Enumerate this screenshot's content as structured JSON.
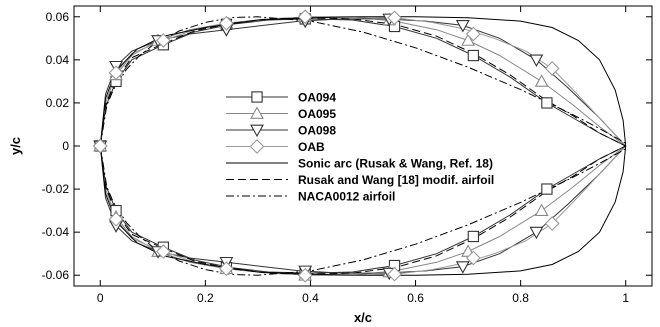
{
  "chart_data": {
    "type": "line",
    "xlabel": "x/c",
    "ylabel": "y/c",
    "xlim": [
      -0.05,
      1.05
    ],
    "ylim": [
      -0.065,
      0.065
    ],
    "xticks": [
      {
        "v": 0,
        "label": "0"
      },
      {
        "v": 0.2,
        "label": "0.2"
      },
      {
        "v": 0.4,
        "label": "0.4"
      },
      {
        "v": 0.6,
        "label": "0.6"
      },
      {
        "v": 0.8,
        "label": "0.8"
      },
      {
        "v": 1,
        "label": "1"
      }
    ],
    "yticks": [
      {
        "v": -0.06,
        "label": "-0.06"
      },
      {
        "v": -0.04,
        "label": "-0.04"
      },
      {
        "v": -0.02,
        "label": "-0.02"
      },
      {
        "v": 0,
        "label": "0"
      },
      {
        "v": 0.02,
        "label": "0.02"
      },
      {
        "v": 0.04,
        "label": "0.04"
      },
      {
        "v": 0.06,
        "label": "0.06"
      }
    ],
    "grid": false,
    "legend_position": "center",
    "series": [
      {
        "name": "OA094",
        "marker": "square",
        "line_style": "solid",
        "color": "#333333",
        "x": [
          0,
          0.01,
          0.03,
          0.06,
          0.12,
          0.18,
          0.25,
          0.32,
          0.4,
          0.48,
          0.56,
          0.64,
          0.71,
          0.78,
          0.85,
          0.9,
          0.95,
          1
        ],
        "y": [
          0,
          0.018,
          0.03,
          0.04,
          0.047,
          0.053,
          0.0565,
          0.0585,
          0.059,
          0.0585,
          0.0555,
          0.05,
          0.042,
          0.032,
          0.02,
          0.013,
          0.006,
          0
        ],
        "markers_x": [
          0,
          0.03,
          0.12,
          0.24,
          0.39,
          0.56,
          0.71,
          0.85
        ],
        "markers_y": [
          0,
          0.03,
          0.047,
          0.0565,
          0.059,
          0.0555,
          0.042,
          0.02
        ]
      },
      {
        "name": "OA095",
        "marker": "triangle-up",
        "line_style": "solid",
        "color": "#888888",
        "x": [
          0,
          0.01,
          0.03,
          0.06,
          0.11,
          0.17,
          0.24,
          0.32,
          0.4,
          0.48,
          0.56,
          0.64,
          0.7,
          0.76,
          0.84,
          0.9,
          0.95,
          1
        ],
        "y": [
          0,
          0.02,
          0.033,
          0.042,
          0.049,
          0.054,
          0.057,
          0.059,
          0.06,
          0.06,
          0.058,
          0.054,
          0.049,
          0.042,
          0.03,
          0.019,
          0.009,
          0
        ],
        "markers_x": [
          0,
          0.03,
          0.11,
          0.24,
          0.39,
          0.55,
          0.7,
          0.84
        ],
        "markers_y": [
          0,
          0.033,
          0.049,
          0.057,
          0.06,
          0.0585,
          0.049,
          0.03
        ]
      },
      {
        "name": "OA098",
        "marker": "triangle-down",
        "line_style": "solid",
        "color": "#333333",
        "x": [
          0,
          0.01,
          0.03,
          0.06,
          0.11,
          0.17,
          0.24,
          0.31,
          0.38,
          0.46,
          0.54,
          0.62,
          0.69,
          0.76,
          0.83,
          0.89,
          0.95,
          1
        ],
        "y": [
          0,
          0.024,
          0.037,
          0.044,
          0.049,
          0.052,
          0.054,
          0.056,
          0.058,
          0.059,
          0.059,
          0.058,
          0.056,
          0.05,
          0.04,
          0.027,
          0.013,
          0
        ],
        "markers_x": [
          0,
          0.03,
          0.11,
          0.24,
          0.39,
          0.55,
          0.69,
          0.83
        ],
        "markers_y": [
          0,
          0.037,
          0.049,
          0.054,
          0.058,
          0.059,
          0.056,
          0.04
        ]
      },
      {
        "name": "OAB",
        "marker": "diamond",
        "line_style": "solid",
        "color": "#999999",
        "x": [
          0,
          0.01,
          0.03,
          0.06,
          0.12,
          0.18,
          0.24,
          0.32,
          0.4,
          0.48,
          0.56,
          0.63,
          0.69,
          0.75,
          0.81,
          0.86,
          0.9,
          0.95,
          1
        ],
        "y": [
          0,
          0.02,
          0.034,
          0.043,
          0.049,
          0.054,
          0.057,
          0.0588,
          0.06,
          0.06,
          0.0595,
          0.0575,
          0.0545,
          0.05,
          0.044,
          0.036,
          0.026,
          0.013,
          0
        ],
        "markers_x": [
          0,
          0.03,
          0.12,
          0.24,
          0.39,
          0.56,
          0.71,
          0.86
        ],
        "markers_y": [
          0,
          0.034,
          0.049,
          0.057,
          0.06,
          0.0595,
          0.052,
          0.036
        ]
      },
      {
        "name": "Sonic arc (Rusak & Wang, Ref. 18)",
        "marker": "none",
        "line_style": "solid",
        "color": "#000000",
        "x": [
          0,
          0.01,
          0.03,
          0.07,
          0.12,
          0.2,
          0.3,
          0.4,
          0.5,
          0.6,
          0.7,
          0.8,
          0.86,
          0.91,
          0.95,
          0.98,
          0.995,
          1
        ],
        "y": [
          0,
          0.022,
          0.035,
          0.045,
          0.051,
          0.055,
          0.0585,
          0.0595,
          0.06,
          0.06,
          0.0595,
          0.058,
          0.055,
          0.049,
          0.04,
          0.026,
          0.012,
          0
        ]
      },
      {
        "name": "Rusak and Wang [18] modif. airfoil",
        "marker": "none",
        "line_style": "dashed",
        "color": "#000000",
        "x": [
          0,
          0.01,
          0.03,
          0.06,
          0.12,
          0.18,
          0.25,
          0.32,
          0.4,
          0.48,
          0.56,
          0.64,
          0.71,
          0.78,
          0.85,
          0.9,
          0.95,
          1
        ],
        "y": [
          0,
          0.019,
          0.031,
          0.041,
          0.0475,
          0.0535,
          0.057,
          0.059,
          0.0595,
          0.059,
          0.0565,
          0.051,
          0.043,
          0.033,
          0.021,
          0.014,
          0.006,
          0
        ]
      },
      {
        "name": "NACA0012 airfoil",
        "marker": "none",
        "line_style": "dashdot",
        "color": "#000000",
        "x": [
          0,
          0.0125,
          0.025,
          0.05,
          0.075,
          0.1,
          0.15,
          0.2,
          0.25,
          0.3,
          0.4,
          0.5,
          0.6,
          0.7,
          0.8,
          0.9,
          0.95,
          1
        ],
        "y": [
          0,
          0.0189,
          0.0262,
          0.0356,
          0.042,
          0.0468,
          0.0534,
          0.0574,
          0.0596,
          0.06,
          0.058,
          0.0529,
          0.0456,
          0.0366,
          0.0262,
          0.0145,
          0.0081,
          0.0013
        ]
      }
    ]
  }
}
